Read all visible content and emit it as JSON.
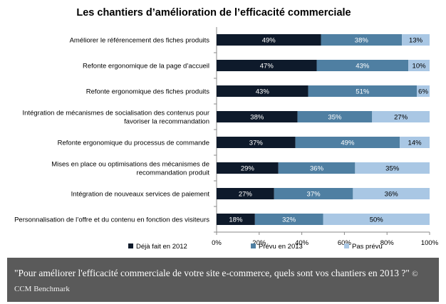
{
  "chart_data": {
    "type": "bar",
    "orientation": "horizontal",
    "stacked": true,
    "title": "Les chantiers d’amélioration de l’efficacité commerciale",
    "categories": [
      [
        "Améliorer le référencement des fiches produits"
      ],
      [
        "Refonte ergonomique de la page d’accueil"
      ],
      [
        "Refonte ergonomique des fiches produits"
      ],
      [
        "Intégration de mécanismes de socialisation des contenus pour",
        "favoriser la recommandation"
      ],
      [
        "Refonte ergonomique du processus de commande"
      ],
      [
        "Mises en place ou optimisations des mécanismes de",
        "recommandation produit"
      ],
      [
        "Intégration de nouveaux services de paiement"
      ],
      [
        "Personnalisation de l’offre et du contenu en fonction des visiteurs"
      ]
    ],
    "series": [
      {
        "name": "Déjà fait en 2012",
        "color": "#0e1a2b",
        "values": [
          49,
          47,
          43,
          38,
          37,
          29,
          27,
          18
        ]
      },
      {
        "name": "Prévu en 2013",
        "color": "#4f7fa2",
        "values": [
          38,
          43,
          51,
          35,
          49,
          36,
          37,
          32
        ]
      },
      {
        "name": "Pas prévu",
        "color": "#a9c7e4",
        "values": [
          13,
          10,
          6,
          27,
          14,
          35,
          36,
          50
        ]
      }
    ],
    "xlim": [
      0,
      100
    ],
    "xticks": [
      "0%",
      "20%",
      "40%",
      "60%",
      "80%",
      "100%"
    ],
    "data_label_suffix": "%",
    "legend_position": "bottom"
  },
  "caption": {
    "text": "\"Pour améliorer l'efficacité commerciale de votre site e-commerce, quels sont vos chantiers en 2013 ?\"",
    "source": "© CCM Benchmark"
  }
}
